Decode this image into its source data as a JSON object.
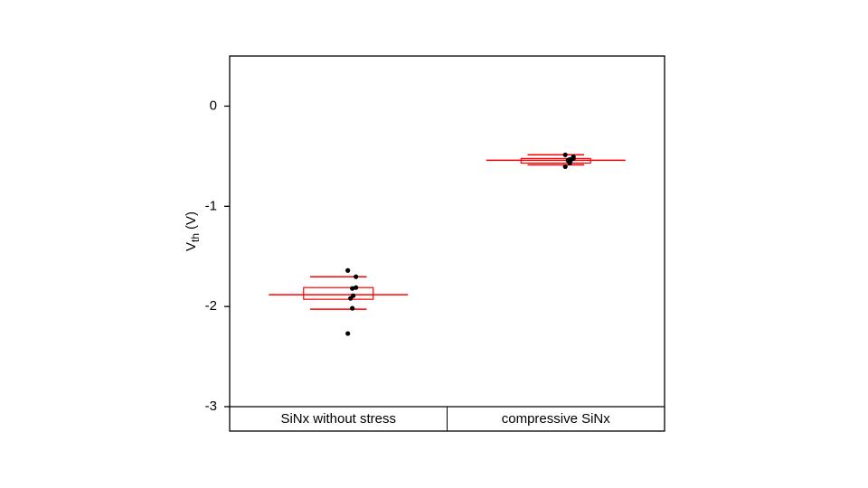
{
  "chart_data": {
    "type": "box",
    "ylabel": {
      "main": "V",
      "sub": "th",
      "unit": "(V)"
    },
    "categories": [
      "SiNx without stress",
      "compressive SiNx"
    ],
    "color": "#ff0000",
    "point_color": "#000000",
    "series": [
      {
        "q1": -1.928,
        "q3": -1.811,
        "center": -1.883,
        "whisker_low": -2.027,
        "whisker_high": -1.703,
        "points": [
          -1.64,
          -1.703,
          -1.811,
          -1.82,
          -1.892,
          -1.919,
          -2.018,
          -2.27
        ]
      },
      {
        "q1": -0.568,
        "q3": -0.523,
        "center": -0.541,
        "whisker_low": -0.586,
        "whisker_high": -0.486,
        "points": [
          -0.486,
          -0.505,
          -0.523,
          -0.532,
          -0.541,
          -0.541,
          -0.568,
          -0.604
        ]
      }
    ],
    "ylim": [
      -3,
      0.5
    ],
    "yticks": [
      0,
      -1,
      -2,
      -3
    ]
  }
}
